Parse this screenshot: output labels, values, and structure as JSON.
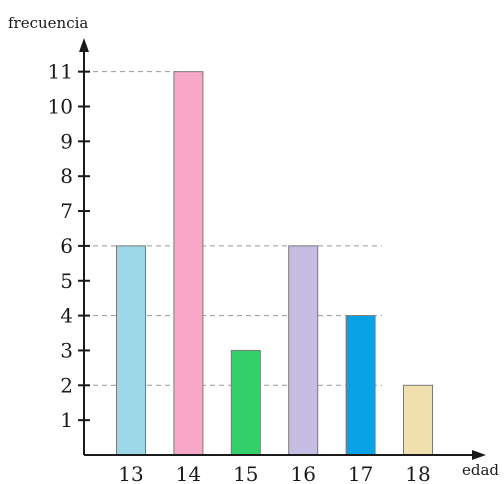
{
  "chart_data": {
    "type": "bar",
    "ylabel": "frecuencia",
    "xlabel": "edad",
    "categories": [
      "13",
      "14",
      "15",
      "16",
      "17",
      "18"
    ],
    "values": [
      6,
      11,
      3,
      6,
      4,
      2
    ],
    "colors": [
      "#9dd8e8",
      "#f7a8c9",
      "#33d06a",
      "#c5bde3",
      "#0aa2e6",
      "#efe0ad"
    ],
    "ylim": [
      0,
      11
    ],
    "yticks": [
      1,
      2,
      3,
      4,
      5,
      6,
      7,
      8,
      9,
      10,
      11
    ],
    "dashed_gridlines_at": [
      2,
      4,
      6,
      11
    ]
  }
}
